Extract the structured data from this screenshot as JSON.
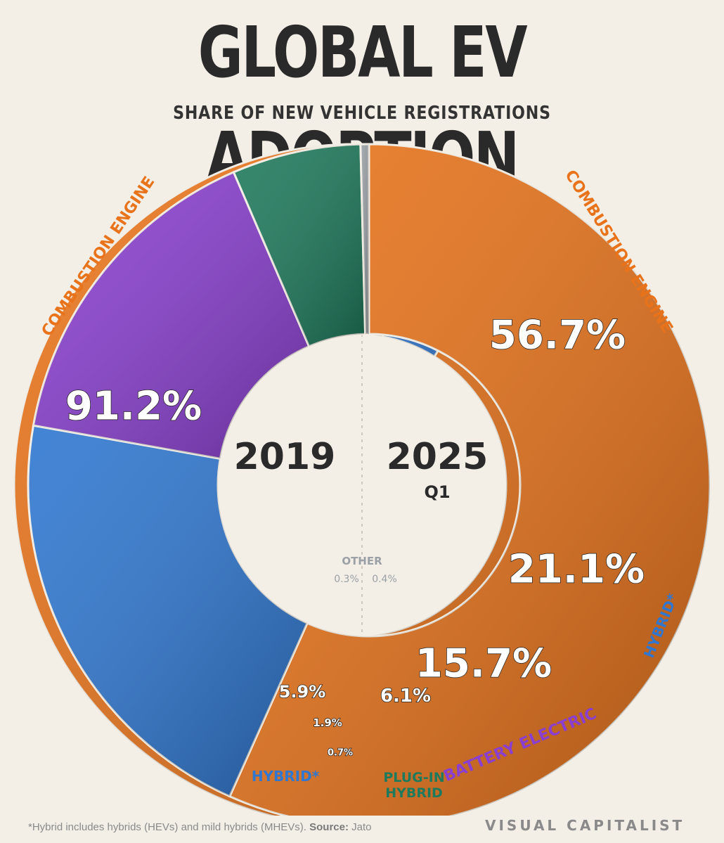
{
  "title": "GLOBAL EV ADOPTION",
  "subtitle": "SHARE OF NEW VEHICLE REGISTRATIONS",
  "chart_data": [
    {
      "type": "pie",
      "label": "2019",
      "categories": [
        "Combustion Engine",
        "Hybrid*",
        "Battery Electric",
        "Plug-in Hybrid",
        "Other"
      ],
      "values": [
        91.2,
        5.9,
        1.9,
        0.7,
        0.3
      ],
      "value_labels": [
        "91.2%",
        "5.9%",
        "1.9%",
        "0.7%",
        "0.3%"
      ]
    },
    {
      "type": "pie",
      "label": "2025",
      "sublabel": "Q1",
      "categories": [
        "Combustion Engine",
        "Hybrid*",
        "Battery Electric",
        "Plug-in Hybrid",
        "Other"
      ],
      "values": [
        56.7,
        21.1,
        15.7,
        6.1,
        0.4
      ],
      "value_labels": [
        "56.7%",
        "21.1%",
        "15.7%",
        "6.1%",
        "0.4%"
      ]
    }
  ],
  "labels": {
    "combustion": "COMBUSTION ENGINE",
    "hybrid": "HYBRID*",
    "battery": "BATTERY ELECTRIC",
    "plugin_1": "PLUG-IN",
    "plugin_2": "HYBRID",
    "other": "OTHER"
  },
  "colors": {
    "combustion": "#e8731a",
    "hybrid": "#2f77d0",
    "battery": "#8a3fd0",
    "plugin": "#1e7a5c",
    "other": "#9aa0a6"
  },
  "footnote_text": "*Hybrid includes hybrids (HEVs) and mild hybrids (MHEVs).",
  "footnote_source_label": "Source:",
  "footnote_source": "Jato",
  "brand": "VISUAL CAPITALIST"
}
